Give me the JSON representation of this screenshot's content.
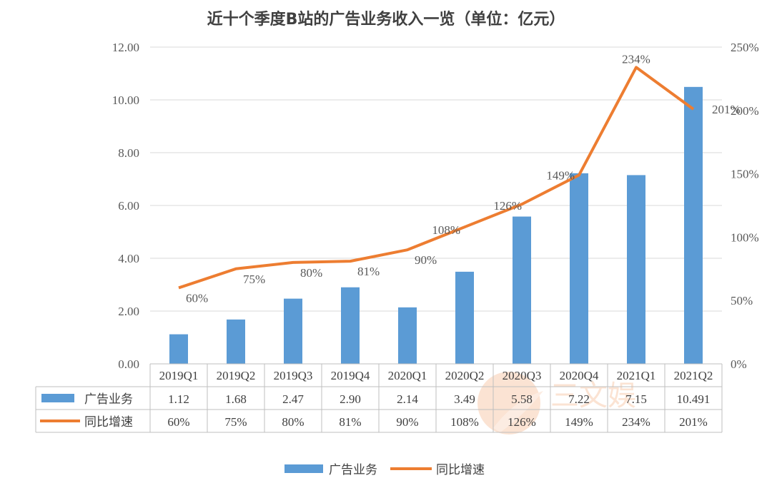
{
  "chart_data": {
    "type": "bar",
    "title": "近十个季度B站的广告业务收入一览（单位：亿元）",
    "categories": [
      "2019Q1",
      "2019Q2",
      "2019Q3",
      "2019Q4",
      "2020Q1",
      "2020Q2",
      "2020Q3",
      "2020Q4",
      "2021Q1",
      "2021Q2"
    ],
    "series": [
      {
        "name": "广告业务",
        "type": "bar",
        "axis": "left",
        "values": [
          1.12,
          1.68,
          2.47,
          2.9,
          2.14,
          3.49,
          5.58,
          7.22,
          7.15,
          10.491
        ],
        "table_labels": [
          "1.12",
          "1.68",
          "2.47",
          "2.90",
          "2.14",
          "3.49",
          "5.58",
          "7.22",
          "7.15",
          "10.491"
        ],
        "color": "#5b9bd5"
      },
      {
        "name": "同比增速",
        "type": "line",
        "axis": "right",
        "values": [
          60,
          75,
          80,
          81,
          90,
          108,
          126,
          149,
          234,
          201
        ],
        "labels": [
          "60%",
          "75%",
          "80%",
          "81%",
          "90%",
          "108%",
          "126%",
          "149%",
          "234%",
          "201%"
        ],
        "color": "#ed7d31"
      }
    ],
    "y_left": {
      "ylim": [
        0,
        12
      ],
      "ticks": [
        "0.00",
        "2.00",
        "4.00",
        "6.00",
        "8.00",
        "10.00",
        "12.00"
      ]
    },
    "y_right": {
      "ylim": [
        0,
        250
      ],
      "ticks": [
        "0%",
        "50%",
        "100%",
        "150%",
        "200%",
        "250%"
      ]
    },
    "grid": true,
    "data_table": true,
    "legend": "bottom-center"
  },
  "watermark": "三文娱"
}
